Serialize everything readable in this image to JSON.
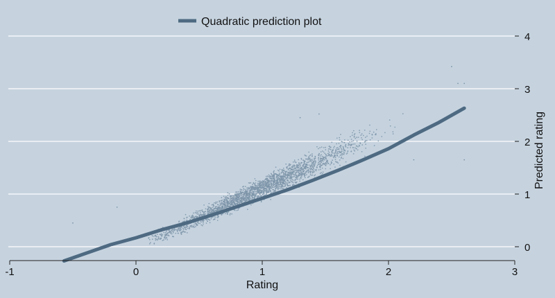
{
  "chart_data": {
    "type": "scatter",
    "title": "",
    "xlabel": "Rating",
    "ylabel": "Predicted rating",
    "xlim": [
      -1,
      3
    ],
    "ylim": [
      -0.28,
      4.3
    ],
    "x_ticks": [
      -1,
      0,
      1,
      2,
      3
    ],
    "x_tick_labels": [
      "-1",
      "0",
      "1",
      "2",
      "3"
    ],
    "y_ticks": [
      0,
      1,
      2,
      3,
      4
    ],
    "y_tick_labels": [
      "0",
      "1",
      "2",
      "3",
      "4"
    ],
    "y_axis_side": "right",
    "grid": "horizontal",
    "legend": {
      "position": "top",
      "entries": [
        "Quadratic prediction plot"
      ]
    },
    "series": [
      {
        "name": "Quadratic prediction plot",
        "kind": "line",
        "color": "#4e6a82",
        "x": [
          -0.57,
          -0.2,
          0.0,
          0.2,
          0.4,
          0.6,
          0.8,
          1.0,
          1.2,
          1.4,
          1.6,
          1.8,
          2.0,
          2.2,
          2.4,
          2.6
        ],
        "y": [
          -0.27,
          0.04,
          0.17,
          0.32,
          0.45,
          0.6,
          0.76,
          0.92,
          1.08,
          1.26,
          1.45,
          1.65,
          1.86,
          2.12,
          2.36,
          2.63
        ]
      },
      {
        "name": "",
        "kind": "scatter",
        "color": "#7e95a9",
        "x_range": [
          0.1,
          2.3
        ],
        "relationship": "y ≈ 1.13·x − 0.02 (dense cloud along fit line, spread widening with x)",
        "outliers": [
          {
            "x": -0.5,
            "y": 0.45
          },
          {
            "x": -0.15,
            "y": 0.75
          },
          {
            "x": 1.3,
            "y": 2.45
          },
          {
            "x": 1.45,
            "y": 2.52
          },
          {
            "x": 2.55,
            "y": 3.1
          },
          {
            "x": 2.6,
            "y": 3.1
          },
          {
            "x": 2.5,
            "y": 3.42
          },
          {
            "x": 2.6,
            "y": 1.65
          },
          {
            "x": 2.2,
            "y": 1.65
          }
        ]
      }
    ]
  },
  "colors": {
    "background": "#c6d3df",
    "gridline": "#ffffff",
    "fit_line": "#4e6a82",
    "scatter": "#7e95a9"
  }
}
